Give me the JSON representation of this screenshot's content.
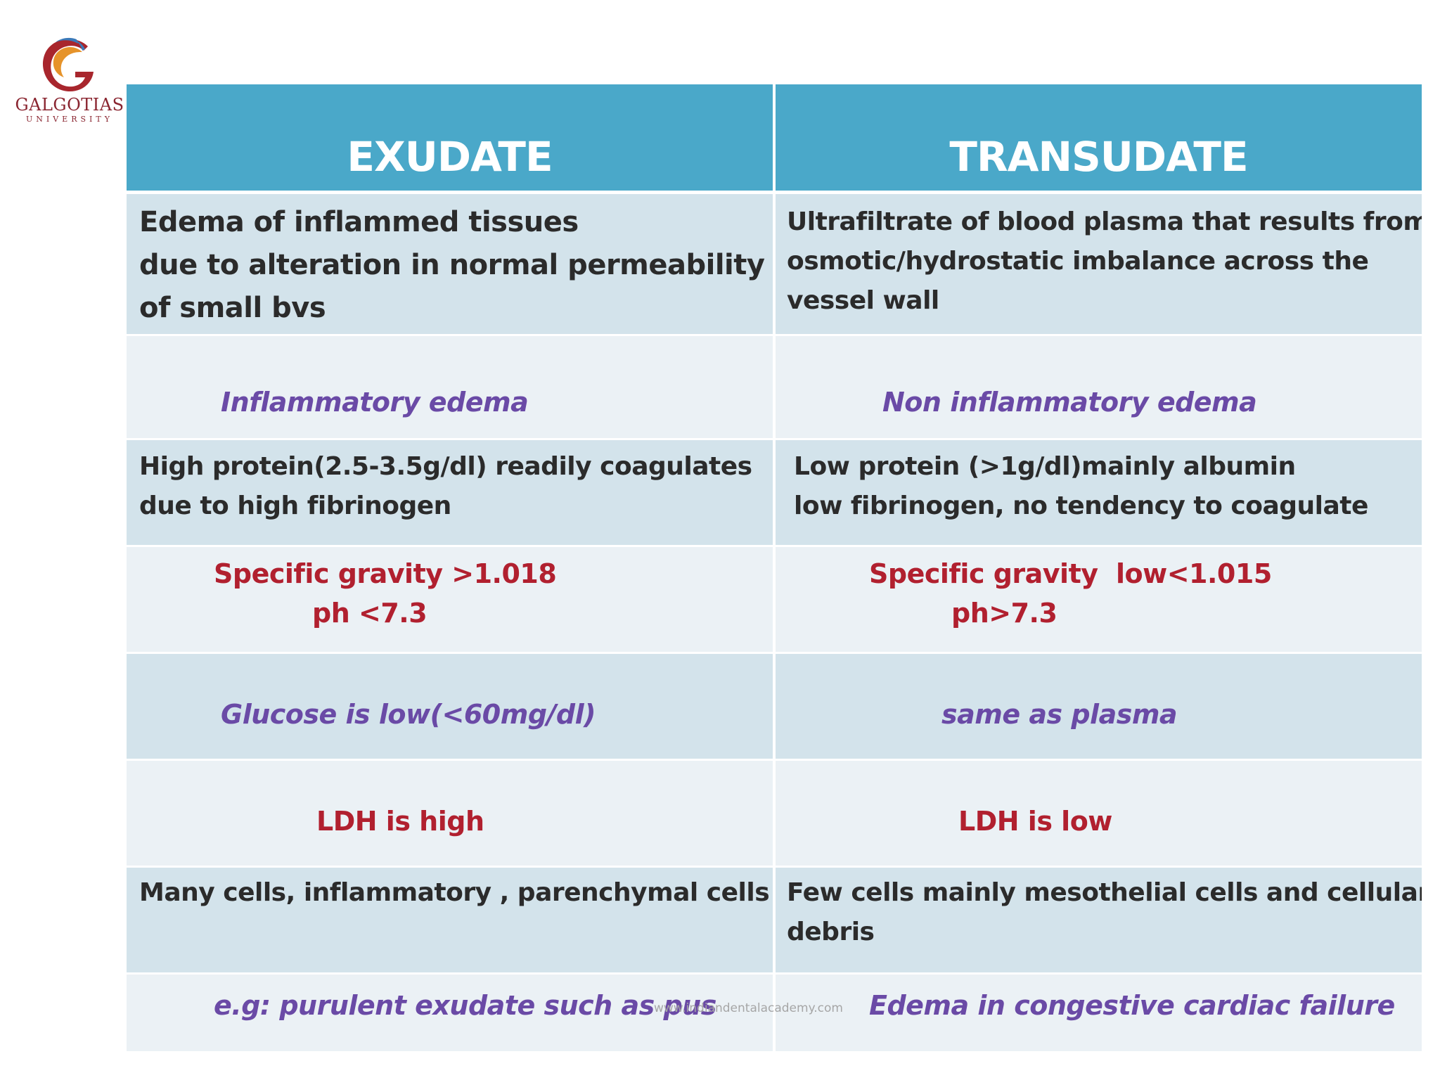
{
  "logo": {
    "name": "GALGOTIAS",
    "subtitle": "UNIVERSITY",
    "colors": {
      "red": "#a8262d",
      "orange": "#e6932a",
      "blue": "#3b79b8"
    }
  },
  "table": {
    "headers": [
      "EXUDATE",
      "TRANSUDATE"
    ],
    "rows": [
      {
        "exudate": [
          "Edema of inflammed tissues",
          "due to alteration in normal permeability",
          "of small bvs"
        ],
        "transudate": [
          "Ultrafiltrate of blood plasma that results from",
          "osmotic/hydrostatic imbalance across the",
          "vessel wall"
        ]
      },
      {
        "exudate": "Inflammatory edema",
        "transudate": "Non inflammatory edema"
      },
      {
        "exudate": [
          "High protein(2.5-3.5g/dl) readily coagulates",
          "due to high fibrinogen"
        ],
        "transudate": [
          "Low protein (>1g/dl)mainly albumin",
          "low fibrinogen, no tendency to coagulate"
        ]
      },
      {
        "exudate": [
          "Specific gravity >1.018",
          "ph <7.3"
        ],
        "transudate": [
          "Specific gravity  low<1.015",
          "ph>7.3"
        ]
      },
      {
        "exudate": "Glucose is low(<60mg/dl)",
        "transudate": "same as plasma"
      },
      {
        "exudate": "LDH is high",
        "transudate": "LDH is low"
      },
      {
        "exudate": "Many cells, inflammatory , parenchymal cells",
        "transudate": [
          "Few cells mainly mesothelial cells and cellular",
          "debris"
        ]
      },
      {
        "exudate": "e.g: purulent exudate such as pus",
        "transudate": "Edema in congestive cardiac failure"
      }
    ]
  },
  "watermark": "www.indiandentalacademy.com",
  "colors": {
    "header_bg": "#4aa8c9",
    "band_dark": "#d3e3eb",
    "band_light": "#ebf1f5",
    "purple_text": "#6a4aa6",
    "red_text": "#b1202f",
    "black_text": "#2b2b2b"
  }
}
